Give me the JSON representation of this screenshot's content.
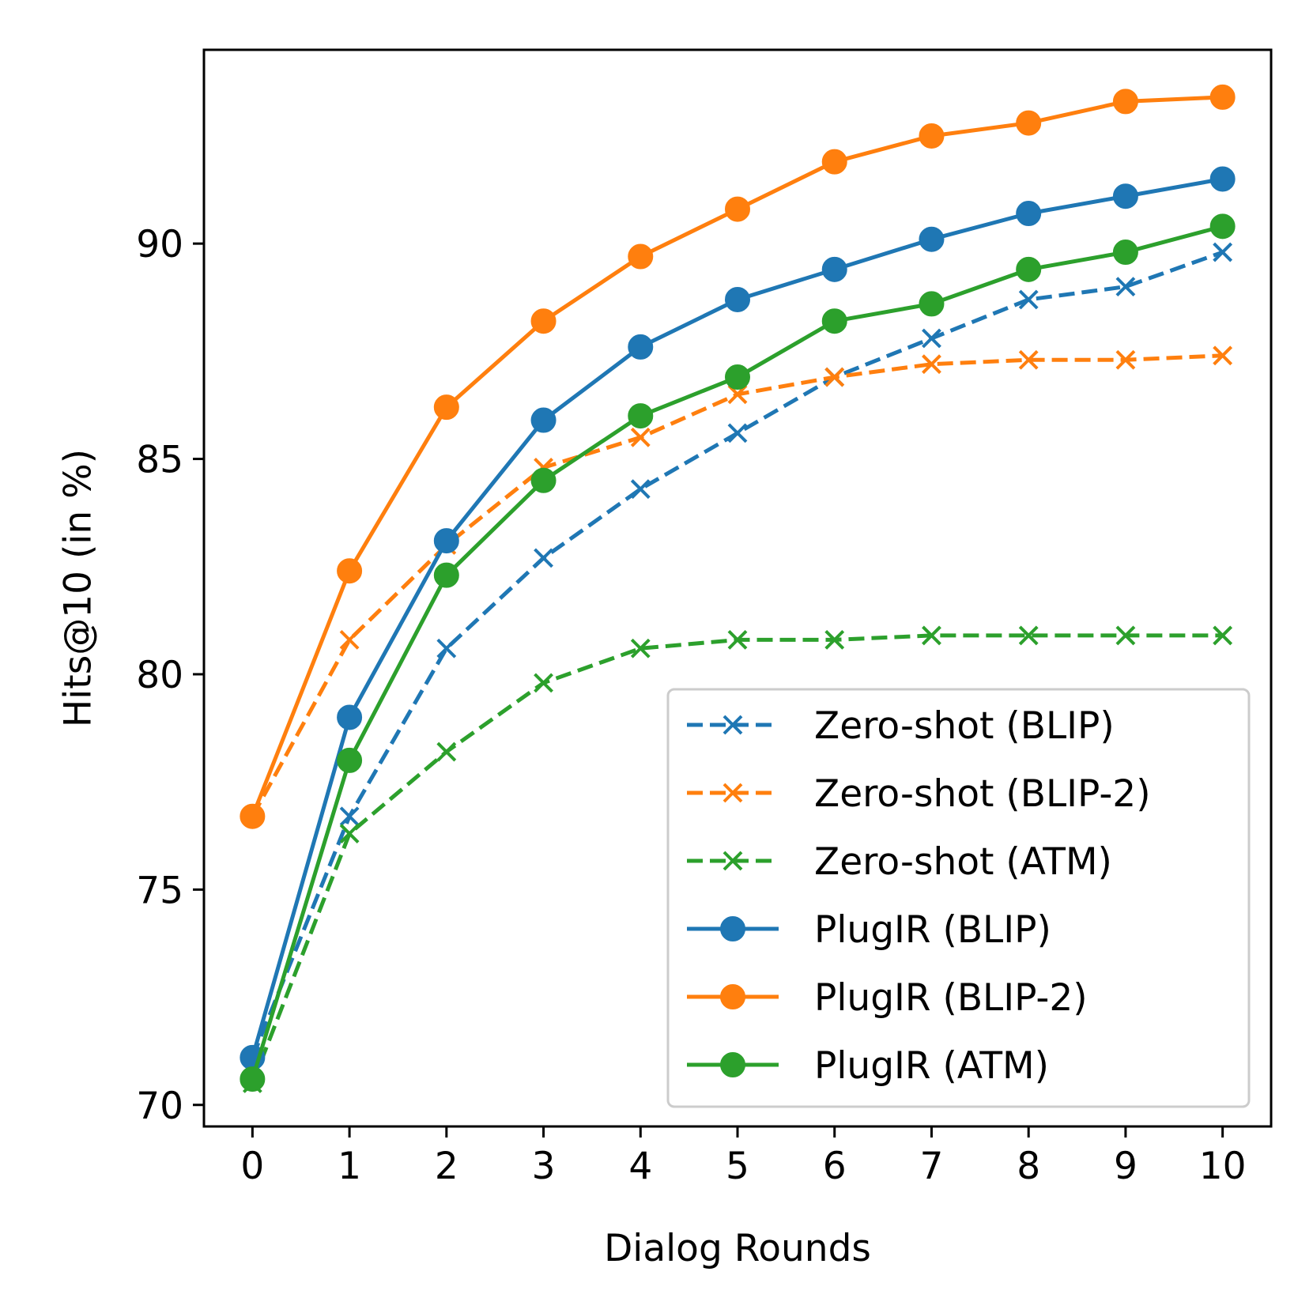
{
  "chart_data": {
    "type": "line",
    "title": "",
    "xlabel": "Dialog Rounds",
    "ylabel": "Hits@10 (in %)",
    "x": [
      0,
      1,
      2,
      3,
      4,
      5,
      6,
      7,
      8,
      9,
      10
    ],
    "x_tick_labels": [
      "0",
      "1",
      "2",
      "3",
      "4",
      "5",
      "6",
      "7",
      "8",
      "9",
      "10"
    ],
    "y_ticks": [
      70,
      75,
      80,
      85,
      90
    ],
    "y_tick_labels": [
      "70",
      "75",
      "80",
      "85",
      "90"
    ],
    "xlim": [
      -0.5,
      10.5
    ],
    "ylim": [
      69.5,
      94.5
    ],
    "grid": false,
    "legend_position": "lower-right",
    "series": [
      {
        "name": "Zero-shot (BLIP)",
        "color": "#1f77b4",
        "line_style": "dashed",
        "marker": "x",
        "values": [
          71.1,
          76.7,
          80.6,
          82.7,
          84.3,
          85.6,
          86.9,
          87.8,
          88.7,
          89.0,
          89.8
        ]
      },
      {
        "name": "Zero-shot (BLIP-2)",
        "color": "#ff7f0e",
        "line_style": "dashed",
        "marker": "x",
        "values": [
          76.7,
          80.8,
          83.0,
          84.8,
          85.5,
          86.5,
          86.9,
          87.2,
          87.3,
          87.3,
          87.4
        ]
      },
      {
        "name": "Zero-shot (ATM)",
        "color": "#2ca02c",
        "line_style": "dashed",
        "marker": "x",
        "values": [
          70.5,
          76.3,
          78.2,
          79.8,
          80.6,
          80.8,
          80.8,
          80.9,
          80.9,
          80.9,
          80.9
        ]
      },
      {
        "name": "PlugIR (BLIP)",
        "color": "#1f77b4",
        "line_style": "solid",
        "marker": "o",
        "values": [
          71.1,
          79.0,
          83.1,
          85.9,
          87.6,
          88.7,
          89.4,
          90.1,
          90.7,
          91.1,
          91.5
        ]
      },
      {
        "name": "PlugIR (BLIP-2)",
        "color": "#ff7f0e",
        "line_style": "solid",
        "marker": "o",
        "values": [
          76.7,
          82.4,
          86.2,
          88.2,
          89.7,
          90.8,
          91.9,
          92.5,
          92.8,
          93.3,
          93.4
        ]
      },
      {
        "name": "PlugIR (ATM)",
        "color": "#2ca02c",
        "line_style": "solid",
        "marker": "o",
        "values": [
          70.6,
          78.0,
          82.3,
          84.5,
          86.0,
          86.9,
          88.2,
          88.6,
          89.4,
          89.8,
          90.4
        ]
      }
    ]
  }
}
